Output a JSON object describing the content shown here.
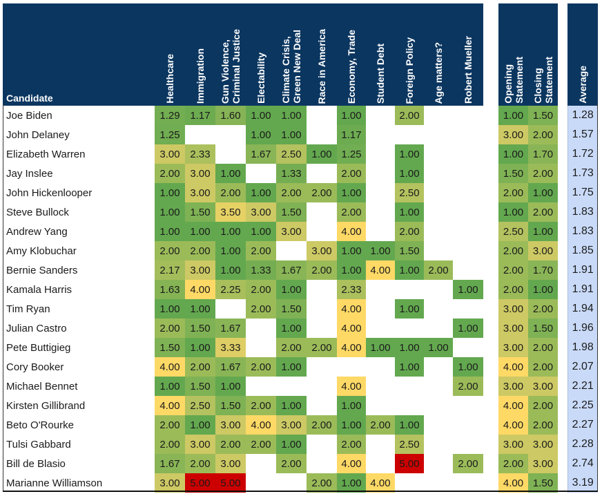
{
  "chart_data": {
    "type": "heatmap",
    "row_header": "Candidate",
    "columns": [
      [
        "Healthcare"
      ],
      [
        "Immigration"
      ],
      [
        "Gun Violence,",
        "Criminal Justice"
      ],
      [
        "Electability"
      ],
      [
        "Climate Crisis,",
        "Green New Deal"
      ],
      [
        "Race in America"
      ],
      [
        "Economy, Trade"
      ],
      [
        "Student Debt"
      ],
      [
        "Foreign Policy"
      ],
      [
        "Age matters?"
      ],
      [
        "Robert Mueller"
      ],
      [
        "Opening",
        "Statement"
      ],
      [
        "Closing",
        "Statement"
      ]
    ],
    "average_header": "Average",
    "color_scale": {
      "1": "#63a84f",
      "2": "#9bbb59",
      "3": "#cdc964",
      "4": "#ffd966",
      "5": "#cc0000"
    },
    "average_color": "#c9daf8",
    "header_color": "#0b3660",
    "rows": [
      {
        "name": "Joe Biden",
        "values": [
          "1.29",
          "1.17",
          "1.60",
          "1.00",
          "1.00",
          null,
          "1.00",
          null,
          "2.00",
          null,
          null,
          "1.00",
          "1.50"
        ],
        "average": "1.28"
      },
      {
        "name": "John Delaney",
        "values": [
          "1.25",
          null,
          null,
          "1.00",
          "1.00",
          null,
          "1.17",
          null,
          null,
          null,
          null,
          "3.00",
          "2.00"
        ],
        "average": "1.57"
      },
      {
        "name": "Elizabeth Warren",
        "values": [
          "3.00",
          "2.33",
          null,
          "1.67",
          "2.50",
          "1.00",
          "1.25",
          null,
          "1.00",
          null,
          null,
          "1.00",
          "1.70"
        ],
        "average": "1.72"
      },
      {
        "name": "Jay Inslee",
        "values": [
          "2.00",
          "3.00",
          "1.00",
          null,
          "1.33",
          null,
          "2.00",
          null,
          "1.00",
          null,
          null,
          "1.50",
          "2.00"
        ],
        "average": "1.73"
      },
      {
        "name": "John Hickenlooper",
        "values": [
          "1.00",
          "3.00",
          "2.00",
          "1.00",
          "2.00",
          "2.00",
          "1.00",
          null,
          "2.50",
          null,
          null,
          "2.00",
          "1.00"
        ],
        "average": "1.75"
      },
      {
        "name": "Steve Bullock",
        "values": [
          "1.00",
          "1.50",
          "3.50",
          "3.00",
          "1.50",
          null,
          "2.00",
          null,
          "1.00",
          null,
          null,
          "1.00",
          "2.00"
        ],
        "average": "1.83"
      },
      {
        "name": "Andrew Yang",
        "values": [
          "1.00",
          "1.00",
          "1.00",
          "1.00",
          "3.00",
          null,
          "4.00",
          null,
          "2.00",
          null,
          null,
          "2.50",
          "1.00"
        ],
        "average": "1.83"
      },
      {
        "name": "Amy Klobuchar",
        "values": [
          "2.00",
          "2.00",
          "1.00",
          "2.00",
          null,
          "3.00",
          "1.00",
          "1.00",
          "1.50",
          null,
          null,
          "2.00",
          "3.00"
        ],
        "average": "1.85"
      },
      {
        "name": "Bernie Sanders",
        "values": [
          "2.17",
          "3.00",
          "1.00",
          "1.33",
          "1.67",
          "2.00",
          "1.00",
          "4.00",
          "1.00",
          "2.00",
          null,
          "2.00",
          "1.70"
        ],
        "average": "1.91"
      },
      {
        "name": "Kamala Harris",
        "values": [
          "1.63",
          "4.00",
          "2.25",
          "2.00",
          "1.00",
          null,
          "2.33",
          null,
          null,
          null,
          "1.00",
          "2.00",
          "1.00"
        ],
        "average": "1.91"
      },
      {
        "name": "Tim Ryan",
        "values": [
          "1.00",
          "1.00",
          null,
          "2.00",
          "1.50",
          null,
          "4.00",
          null,
          "1.00",
          null,
          null,
          "3.00",
          "2.00"
        ],
        "average": "1.94"
      },
      {
        "name": "Julian Castro",
        "values": [
          "2.00",
          "1.50",
          "1.67",
          null,
          "1.00",
          null,
          "4.00",
          null,
          null,
          null,
          "1.00",
          "3.00",
          "1.50"
        ],
        "average": "1.96"
      },
      {
        "name": "Pete Buttigieg",
        "values": [
          "1.50",
          "1.00",
          "3.33",
          null,
          "2.00",
          "2.00",
          "4.00",
          "1.00",
          "1.00",
          "1.00",
          null,
          "3.00",
          "2.00"
        ],
        "average": "1.98"
      },
      {
        "name": "Cory Booker",
        "values": [
          "4.00",
          "2.00",
          "1.67",
          "2.00",
          "1.00",
          null,
          null,
          null,
          "1.00",
          null,
          "1.00",
          "4.00",
          "2.00"
        ],
        "average": "2.07"
      },
      {
        "name": "Michael Bennet",
        "values": [
          "1.00",
          "1.50",
          "1.00",
          null,
          null,
          null,
          "4.00",
          null,
          null,
          null,
          "2.00",
          "3.00",
          "3.00"
        ],
        "average": "2.21"
      },
      {
        "name": "Kirsten Gillibrand",
        "values": [
          "4.00",
          "2.50",
          "1.50",
          "2.00",
          "1.00",
          null,
          "1.00",
          null,
          null,
          null,
          null,
          "4.00",
          "2.00"
        ],
        "average": "2.25"
      },
      {
        "name": "Beto O'Rourke",
        "values": [
          "2.00",
          "1.00",
          "3.00",
          "4.00",
          "3.00",
          "2.00",
          "1.00",
          "2.00",
          "1.00",
          null,
          null,
          "4.00",
          "2.00"
        ],
        "average": "2.27"
      },
      {
        "name": "Tulsi Gabbard",
        "values": [
          "2.00",
          "3.00",
          "2.00",
          "2.00",
          "1.00",
          null,
          "2.00",
          null,
          "2.50",
          null,
          null,
          "3.00",
          "3.00"
        ],
        "average": "2.28"
      },
      {
        "name": "Bill de Blasio",
        "values": [
          "1.67",
          "2.00",
          "3.00",
          null,
          "2.00",
          null,
          "4.00",
          null,
          "5.00",
          null,
          "2.00",
          "2.00",
          "3.00"
        ],
        "average": "2.74"
      },
      {
        "name": "Marianne Williamson",
        "values": [
          "3.00",
          "5.00",
          "5.00",
          null,
          null,
          "2.00",
          "1.00",
          "4.00",
          null,
          null,
          null,
          "4.00",
          "1.50"
        ],
        "average": "3.19"
      }
    ]
  }
}
